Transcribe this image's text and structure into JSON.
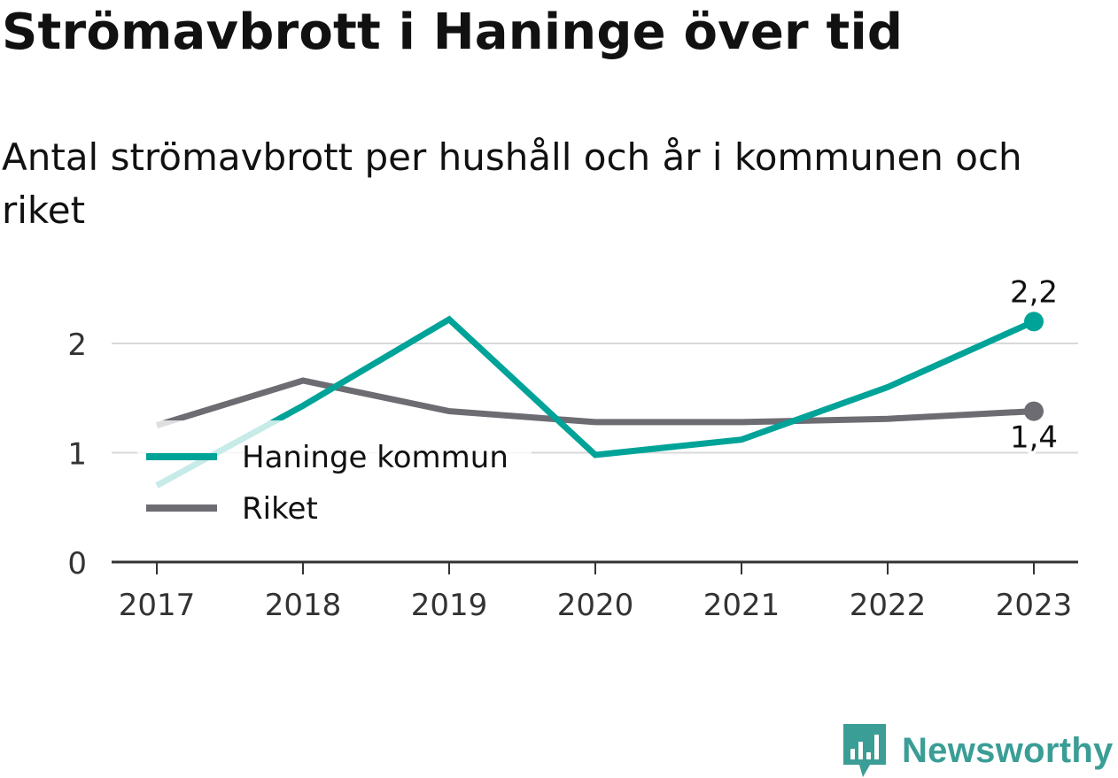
{
  "title": "Strömavbrott i Haninge över tid",
  "subtitle": "Antal strömavbrott per hushåll och år i kommunen och riket",
  "brand": {
    "name": "Newsworthy",
    "color": "#3a9e96"
  },
  "chart_data": {
    "type": "line",
    "categories": [
      "2017",
      "2018",
      "2019",
      "2020",
      "2021",
      "2022",
      "2023"
    ],
    "series": [
      {
        "name": "Haninge kommun",
        "color": "#00a398",
        "values": [
          0.7,
          1.43,
          2.22,
          0.98,
          1.12,
          1.6,
          2.2
        ],
        "end_label": "2,2"
      },
      {
        "name": "Riket",
        "color": "#6d6c73",
        "values": [
          1.25,
          1.66,
          1.38,
          1.28,
          1.28,
          1.31,
          1.38
        ],
        "end_label": "1,4"
      }
    ],
    "y_ticks": [
      0,
      1,
      2
    ],
    "y_tick_labels": [
      "0",
      "1",
      "2"
    ],
    "ylim": [
      0,
      2.4
    ],
    "grid": true,
    "legend_position": "inside-left",
    "xlabel": "",
    "ylabel": ""
  }
}
